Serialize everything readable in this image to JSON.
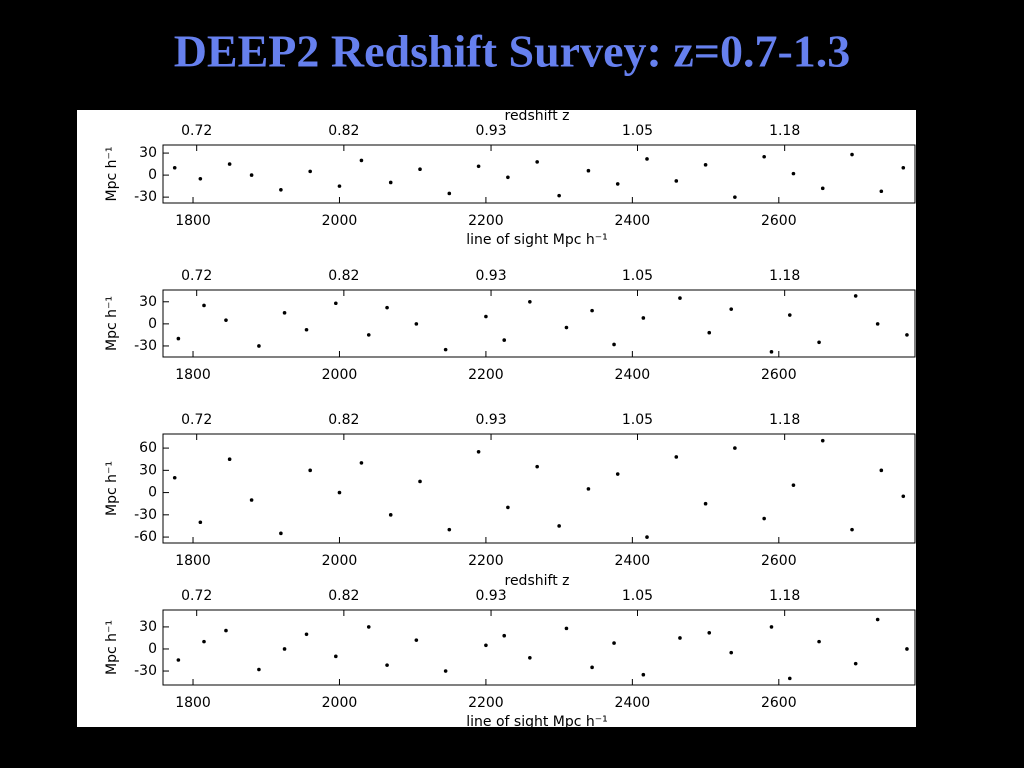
{
  "title": "DEEP2 Redshift Survey: z=0.7-1.3",
  "chart_data": [
    {
      "type": "scatter",
      "top_axis_label": "redshift z",
      "x_label": "line of sight Mpc h⁻¹",
      "y_label": "Mpc h⁻¹",
      "color": "#000000",
      "xlim": [
        1759,
        2786
      ],
      "ylim": [
        -38,
        41
      ],
      "xticks": [
        1800,
        2000,
        2200,
        2400,
        2600
      ],
      "yticks": [
        -30,
        0,
        30
      ],
      "x2ticks": [
        {
          "value": 1805,
          "label": "0.72"
        },
        {
          "value": 2006,
          "label": "0.82"
        },
        {
          "value": 2207,
          "label": "0.93"
        },
        {
          "value": 2407,
          "label": "1.05"
        },
        {
          "value": 2608,
          "label": "1.18"
        }
      ],
      "x": [
        1775,
        1810,
        1850,
        1880,
        1920,
        1960,
        2000,
        2030,
        2070,
        2110,
        2150,
        2190,
        2230,
        2270,
        2300,
        2340,
        2380,
        2420,
        2460,
        2500,
        2540,
        2580,
        2620,
        2660,
        2700,
        2740,
        2770
      ],
      "values": [
        10,
        -5,
        15,
        0,
        -20,
        5,
        -15,
        20,
        -10,
        8,
        -25,
        12,
        -3,
        18,
        -28,
        6,
        -12,
        22,
        -8,
        14,
        -30,
        25,
        2,
        -18,
        28,
        -22,
        10
      ]
    },
    {
      "type": "scatter",
      "y_label": "Mpc h⁻¹",
      "color": "#000000",
      "xlim": [
        1759,
        2786
      ],
      "ylim": [
        -45,
        46
      ],
      "xticks": [
        1800,
        2000,
        2200,
        2400,
        2600
      ],
      "yticks": [
        -30,
        0,
        30
      ],
      "x2ticks": [
        {
          "value": 1805,
          "label": "0.72"
        },
        {
          "value": 2006,
          "label": "0.82"
        },
        {
          "value": 2207,
          "label": "0.93"
        },
        {
          "value": 2407,
          "label": "1.05"
        },
        {
          "value": 2608,
          "label": "1.18"
        }
      ],
      "x": [
        1780,
        1815,
        1845,
        1890,
        1925,
        1955,
        1995,
        2040,
        2065,
        2105,
        2145,
        2200,
        2225,
        2260,
        2310,
        2345,
        2375,
        2415,
        2465,
        2505,
        2535,
        2590,
        2615,
        2655,
        2705,
        2735,
        2775
      ],
      "values": [
        -20,
        25,
        5,
        -30,
        15,
        -8,
        28,
        -15,
        22,
        0,
        -35,
        10,
        -22,
        30,
        -5,
        18,
        -28,
        8,
        35,
        -12,
        20,
        -38,
        12,
        -25,
        38,
        0,
        -15
      ]
    },
    {
      "type": "scatter",
      "y_label": "Mpc h⁻¹",
      "color": "#000000",
      "xlim": [
        1759,
        2786
      ],
      "ylim": [
        -68,
        79
      ],
      "xticks": [
        1800,
        2000,
        2200,
        2400,
        2600
      ],
      "yticks": [
        -60,
        -30,
        0,
        30,
        60
      ],
      "x2ticks": [
        {
          "value": 1805,
          "label": "0.72"
        },
        {
          "value": 2006,
          "label": "0.82"
        },
        {
          "value": 2207,
          "label": "0.93"
        },
        {
          "value": 2407,
          "label": "1.05"
        },
        {
          "value": 2608,
          "label": "1.18"
        }
      ],
      "x": [
        1775,
        1810,
        1850,
        1880,
        1920,
        1960,
        2000,
        2030,
        2070,
        2110,
        2150,
        2190,
        2230,
        2270,
        2300,
        2340,
        2380,
        2420,
        2460,
        2500,
        2540,
        2580,
        2620,
        2660,
        2700,
        2740,
        2770
      ],
      "values": [
        20,
        -40,
        45,
        -10,
        -55,
        30,
        0,
        40,
        -30,
        15,
        -50,
        55,
        -20,
        35,
        -45,
        5,
        25,
        -60,
        48,
        -15,
        60,
        -35,
        10,
        70,
        -50,
        30,
        -5
      ]
    },
    {
      "type": "scatter",
      "top_axis_label": "redshift z",
      "x_label": "line of sight Mpc h⁻¹",
      "y_label": "Mpc h⁻¹",
      "color": "#000000",
      "xlim": [
        1759,
        2786
      ],
      "ylim": [
        -49,
        53
      ],
      "xticks": [
        1800,
        2000,
        2200,
        2400,
        2600
      ],
      "yticks": [
        -30,
        0,
        30
      ],
      "x2ticks": [
        {
          "value": 1805,
          "label": "0.72"
        },
        {
          "value": 2006,
          "label": "0.82"
        },
        {
          "value": 2207,
          "label": "0.93"
        },
        {
          "value": 2407,
          "label": "1.05"
        },
        {
          "value": 2608,
          "label": "1.18"
        }
      ],
      "x": [
        1780,
        1815,
        1845,
        1890,
        1925,
        1955,
        1995,
        2040,
        2065,
        2105,
        2145,
        2200,
        2225,
        2260,
        2310,
        2345,
        2375,
        2415,
        2465,
        2505,
        2535,
        2590,
        2615,
        2655,
        2705,
        2735,
        2775
      ],
      "values": [
        -15,
        10,
        25,
        -28,
        0,
        20,
        -10,
        30,
        -22,
        12,
        -30,
        5,
        18,
        -12,
        28,
        -25,
        8,
        -35,
        15,
        22,
        -5,
        30,
        -40,
        10,
        -20,
        40,
        0
      ]
    }
  ]
}
